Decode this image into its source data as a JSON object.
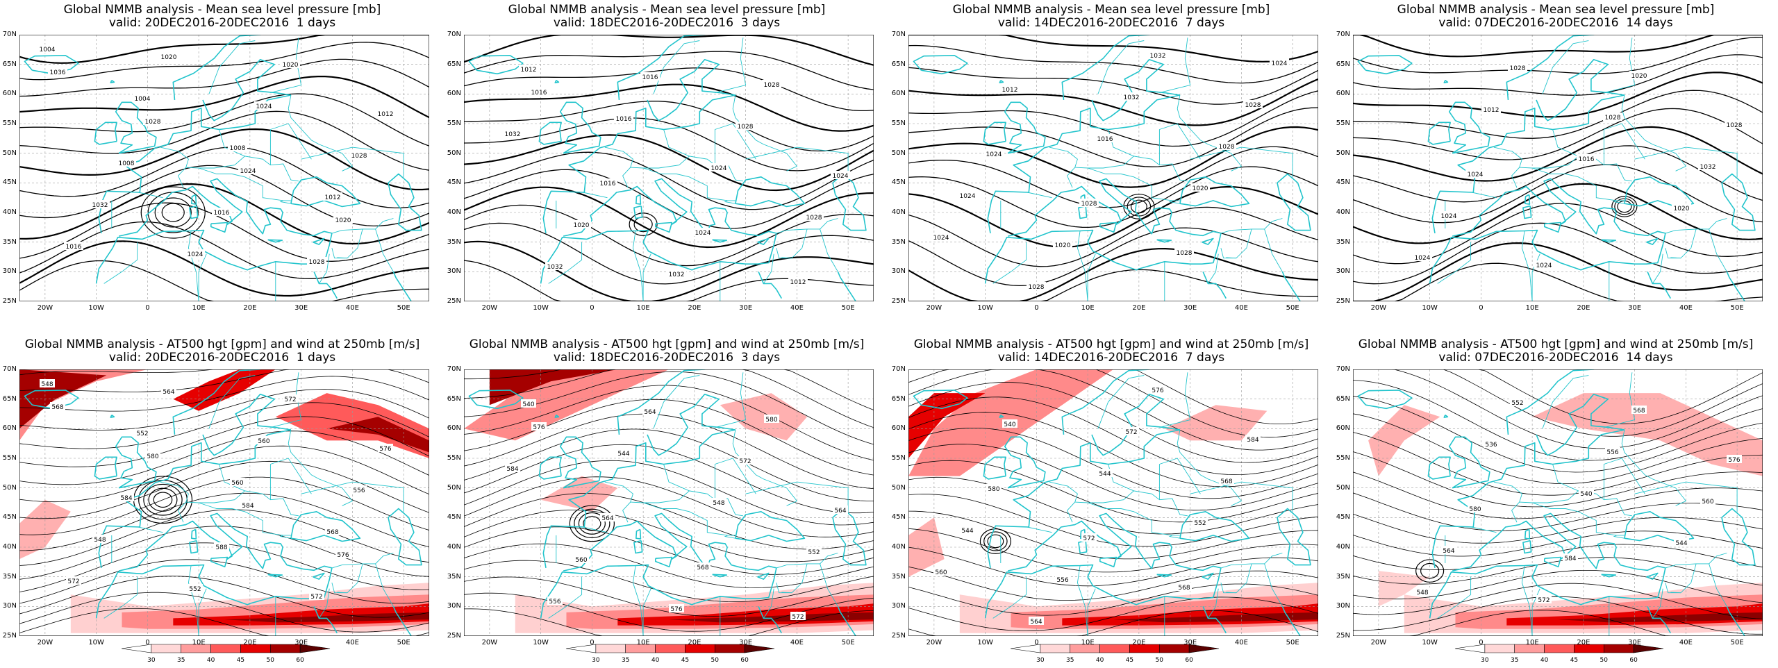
{
  "mslp_title_prefix": "Global NMMB analysis - Mean sea level pressure [mb]",
  "wind_title_prefix": "Global NMMB analysis - AT500 hgt [gpm] and wind at 250mb [m/s]",
  "panels_top": [
    {
      "title": "Global NMMB analysis - Mean sea level pressure [mb]",
      "valid": "valid: 20DEC2016-20DEC2016  1 days"
    },
    {
      "title": "Global NMMB analysis - Mean sea level pressure [mb]",
      "valid": "valid: 18DEC2016-20DEC2016  3 days"
    },
    {
      "title": "Global NMMB analysis - Mean sea level pressure [mb]",
      "valid": "valid: 14DEC2016-20DEC2016  7 days"
    },
    {
      "title": "Global NMMB analysis - Mean sea level pressure [mb]",
      "valid": "valid: 07DEC2016-20DEC2016  14 days"
    }
  ],
  "panels_bottom": [
    {
      "title": "Global NMMB analysis - AT500 hgt [gpm] and wind at 250mb [m/s]",
      "valid": "valid: 20DEC2016-20DEC2016  1 days"
    },
    {
      "title": "Global NMMB analysis - AT500 hgt [gpm] and wind at 250mb [m/s]",
      "valid": "valid: 18DEC2016-20DEC2016  3 days"
    },
    {
      "title": "Global NMMB analysis - AT500 hgt [gpm] and wind at 250mb [m/s]",
      "valid": "valid: 14DEC2016-20DEC2016  7 days"
    },
    {
      "title": "Global NMMB analysis - AT500 hgt [gpm] and wind at 250mb [m/s]",
      "valid": "valid: 07DEC2016-20DEC2016  14 days"
    }
  ],
  "lat_labels": [
    "70N",
    "65N",
    "60N",
    "55N",
    "50N",
    "45N",
    "40N",
    "35N",
    "30N",
    "25N"
  ],
  "lon_labels": [
    "20W",
    "10W",
    "0",
    "10E",
    "20E",
    "30E",
    "40E",
    "50E"
  ],
  "colorbar_labels": [
    "30",
    "35",
    "40",
    "45",
    "50",
    "60"
  ],
  "colorbar_colors": [
    "#ffffff",
    "#ffd8d8",
    "#ff9d9d",
    "#ff5a5a",
    "#e60000",
    "#a50000",
    "#5a0000"
  ],
  "colors": {
    "coast": "#22c4cc",
    "contour": "#000000",
    "grid": "#9a9a9a"
  },
  "mslp_contour_labels": {
    "p1": [
      "1004",
      "1004",
      "1008",
      "1012",
      "1016",
      "1020",
      "1024",
      "1028",
      "1032",
      "1024",
      "1020",
      "1012",
      "1008",
      "1016",
      "1028",
      "1036",
      "1028",
      "1024",
      "1020"
    ],
    "p2": [
      "1012",
      "1016",
      "1024",
      "1028",
      "1032",
      "1016",
      "1028",
      "1024",
      "1020",
      "1032",
      "1028",
      "1032",
      "1016",
      "1024",
      "1012",
      "1016"
    ],
    "p3": [
      "1012",
      "1016",
      "1020",
      "1024",
      "1028",
      "1032",
      "1028",
      "1024",
      "1020",
      "1032",
      "1028",
      "1024",
      "1028",
      "1028",
      "1024"
    ],
    "p4": [
      "1012",
      "1016",
      "1020",
      "1024",
      "1028",
      "1028",
      "1032",
      "1024",
      "1024",
      "1020",
      "1028",
      "1024"
    ]
  },
  "z500_contour_labels": {
    "p1": [
      "548",
      "552",
      "560",
      "568",
      "572",
      "564",
      "560",
      "556",
      "548",
      "552",
      "572",
      "576",
      "584",
      "588",
      "572",
      "568",
      "580",
      "584",
      "576"
    ],
    "p2": [
      "540",
      "544",
      "548",
      "552",
      "556",
      "564",
      "572",
      "564",
      "560",
      "576",
      "580",
      "584",
      "564",
      "568",
      "572",
      "576"
    ],
    "p3": [
      "540",
      "544",
      "552",
      "560",
      "564",
      "572",
      "568",
      "544",
      "556",
      "576",
      "584",
      "580",
      "572",
      "568"
    ],
    "p4": [
      "536",
      "540",
      "544",
      "548",
      "552",
      "556",
      "560",
      "564",
      "572",
      "568",
      "576",
      "580",
      "584"
    ]
  }
}
